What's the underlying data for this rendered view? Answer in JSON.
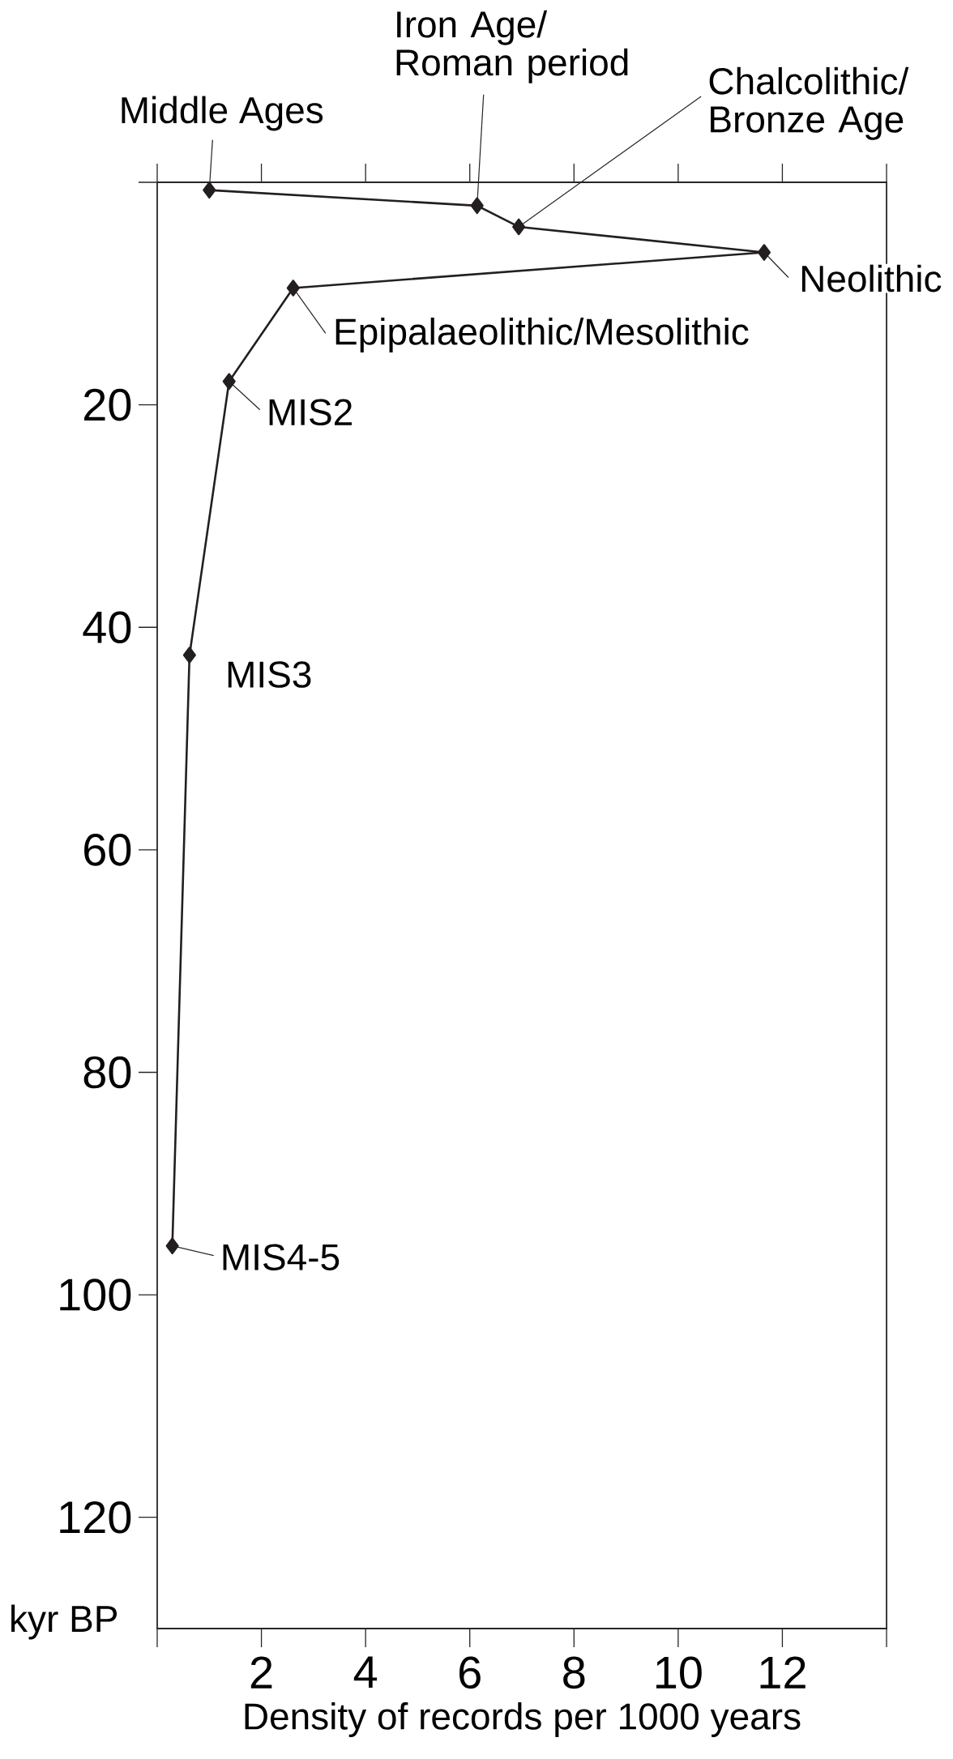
{
  "chart_data": {
    "type": "line",
    "xlabel": "Density of records per 1000 years",
    "ylabel": "kyr BP",
    "x": [
      1.0,
      6.14,
      6.94,
      11.65,
      2.61,
      1.38,
      0.62,
      0.29
    ],
    "values": [
      0.7,
      2.1,
      4.0,
      6.3,
      9.5,
      17.9,
      42.5,
      95.6
    ],
    "color": "#231f20",
    "marker": "diamond",
    "line_style": "solid",
    "xlim": [
      0,
      14
    ],
    "ylim": [
      130,
      0
    ],
    "xticks": [
      {
        "value": 0,
        "label": null
      },
      2,
      4,
      6,
      8,
      10,
      12,
      {
        "value": 14,
        "label": null
      }
    ],
    "yticks": [
      {
        "value": 0,
        "label": null
      },
      20,
      40,
      60,
      80,
      100,
      120
    ],
    "annotations": [
      {
        "text": "Middle Ages",
        "x": 1.0,
        "y": 0.7
      },
      {
        "text": "Iron Age/Roman period",
        "x": 6.14,
        "y": 2.1
      },
      {
        "text": "Chalcolithic/Bronze Age",
        "x": 6.94,
        "y": 4.0
      },
      {
        "text": "Neolithic",
        "x": 11.65,
        "y": 6.3
      },
      {
        "text": "Epipalaeolithic/Mesolithic",
        "x": 2.61,
        "y": 9.5
      },
      {
        "text": "MIS2",
        "x": 1.38,
        "y": 17.9
      },
      {
        "text": "MIS3",
        "x": 0.62,
        "y": 42.5
      },
      {
        "text": "MIS4-5",
        "x": 0.29,
        "y": 95.6
      }
    ]
  }
}
